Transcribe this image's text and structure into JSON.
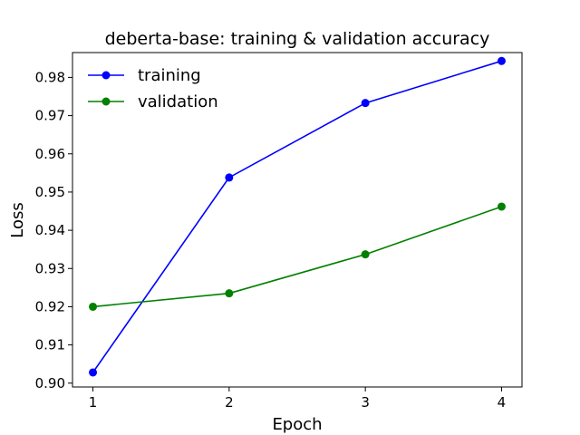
{
  "chart_data": {
    "type": "line",
    "title": "deberta-base: training & validation accuracy",
    "xlabel": "Epoch",
    "ylabel": "Loss",
    "x": [
      1,
      2,
      3,
      4
    ],
    "xlim": [
      0.85,
      4.15
    ],
    "ylim": [
      0.899,
      0.9865
    ],
    "xticks": [
      "1",
      "2",
      "3",
      "4"
    ],
    "yticks": [
      "0.90",
      "0.91",
      "0.92",
      "0.93",
      "0.94",
      "0.95",
      "0.96",
      "0.97",
      "0.98"
    ],
    "legend_position": "top-left",
    "grid": false,
    "series": [
      {
        "name": "training",
        "color": "#0000ff",
        "marker": "circle",
        "values": [
          0.9028,
          0.9538,
          0.9733,
          0.9843
        ]
      },
      {
        "name": "validation",
        "color": "#008000",
        "marker": "circle",
        "values": [
          0.92,
          0.9235,
          0.9337,
          0.9462
        ]
      }
    ]
  }
}
